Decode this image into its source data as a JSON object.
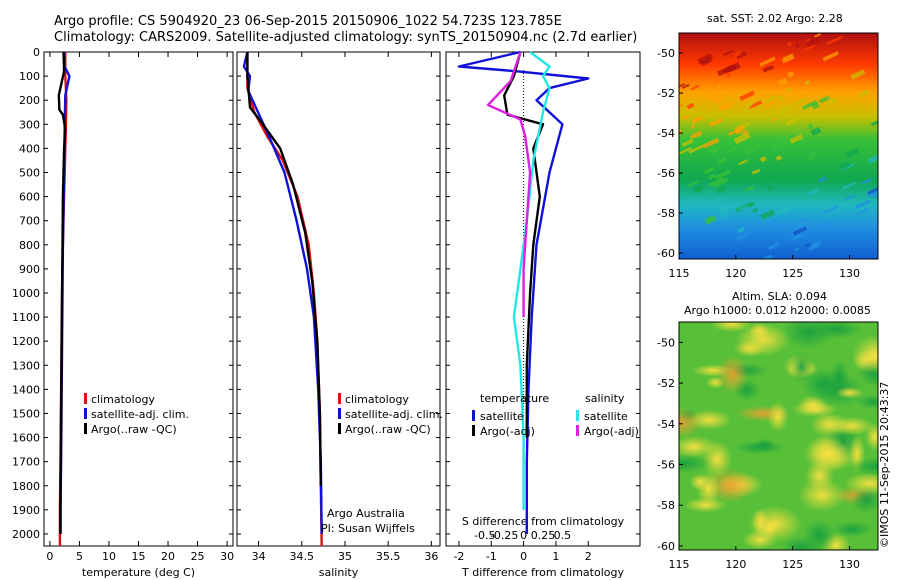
{
  "header": {
    "line1": "Argo profile: CS 5904920_23 06-Sep-2015 20150906_1022 54.723S 123.785E",
    "line2": "Climatology: CARS2009. Satellite-adjusted climatology: synTS_20150904.nc (2.7d earlier)"
  },
  "colors": {
    "climatology": "#e01010",
    "satellite": "#1010d8",
    "argo": "#000000",
    "salinity_satellite": "#20e8e8",
    "salinity_argo": "#e020e0"
  },
  "chart_data": [
    {
      "type": "line",
      "name": "temperature-panel",
      "xlabel": "temperature (deg C)",
      "ylabel": "",
      "xlim": [
        -1,
        31
      ],
      "ylim": [
        2050,
        0
      ],
      "xticks": [
        0,
        5,
        10,
        15,
        20,
        25,
        30
      ],
      "yticks": [
        0,
        100,
        200,
        300,
        400,
        500,
        600,
        700,
        800,
        900,
        1000,
        1100,
        1200,
        1300,
        1400,
        1500,
        1600,
        1700,
        1800,
        1900,
        2000
      ],
      "legend": [
        "climatology",
        "satellite-adj. clim.",
        "Argo(..raw -QC)"
      ],
      "series": [
        {
          "name": "climatology",
          "color": "#e01010",
          "x": [
            2.6,
            2.6,
            2.8,
            2.7,
            2.5,
            2.3,
            2.1,
            2.0,
            1.9,
            1.8,
            1.7,
            1.7
          ],
          "y": [
            0,
            100,
            200,
            300,
            500,
            700,
            900,
            1100,
            1400,
            1700,
            1900,
            2050
          ]
        },
        {
          "name": "satellite-adj. clim.",
          "color": "#1010d8",
          "x": [
            2.4,
            2.5,
            3.3,
            2.6,
            2.5,
            2.4,
            2.2,
            2.1,
            2.0,
            1.9,
            1.8,
            1.8
          ],
          "y": [
            0,
            60,
            100,
            180,
            300,
            500,
            800,
            1100,
            1400,
            1700,
            1900,
            2000
          ]
        },
        {
          "name": "Argo(..raw -QC)",
          "color": "#000000",
          "x": [
            2.3,
            2.4,
            1.5,
            1.6,
            2.2,
            2.6,
            2.4,
            2.2,
            2.1,
            2.0,
            1.9,
            1.8,
            1.8
          ],
          "y": [
            0,
            80,
            180,
            240,
            260,
            320,
            400,
            600,
            900,
            1200,
            1500,
            1800,
            2000
          ]
        }
      ]
    },
    {
      "type": "line",
      "name": "salinity-panel",
      "xlabel": "salinity",
      "xlim": [
        33.75,
        36.1
      ],
      "ylim": [
        2050,
        0
      ],
      "xticks": [
        34,
        34.5,
        35,
        35.5,
        36
      ],
      "xtick_labels": [
        "34",
        "34.5",
        "35",
        "35.5",
        "36"
      ],
      "legend": [
        "climatology",
        "satellite-adj. clim.",
        "Argo(..raw -QC)"
      ],
      "annotation": [
        "Argo Australia",
        "PI: Susan Wijffels"
      ],
      "series": [
        {
          "name": "climatology",
          "color": "#e01010",
          "x": [
            33.87,
            33.87,
            33.95,
            34.1,
            34.28,
            34.45,
            34.58,
            34.64,
            34.68,
            34.71,
            34.72,
            34.73
          ],
          "y": [
            0,
            150,
            250,
            350,
            450,
            600,
            800,
            1000,
            1200,
            1500,
            1800,
            2050
          ]
        },
        {
          "name": "satellite-adj. clim.",
          "color": "#1010d8",
          "x": [
            33.87,
            33.83,
            33.9,
            33.88,
            33.98,
            34.12,
            34.3,
            34.44,
            34.56,
            34.64,
            34.69,
            34.72,
            34.73
          ],
          "y": [
            0,
            60,
            100,
            160,
            240,
            350,
            500,
            700,
            900,
            1100,
            1400,
            1700,
            2000
          ]
        },
        {
          "name": "Argo(..raw -QC)",
          "color": "#000000",
          "x": [
            33.87,
            33.87,
            33.9,
            34.05,
            34.25,
            34.4,
            34.54,
            34.62,
            34.68,
            34.71,
            34.72
          ],
          "y": [
            0,
            100,
            230,
            300,
            400,
            550,
            750,
            950,
            1200,
            1500,
            1800
          ]
        }
      ]
    },
    {
      "type": "line",
      "name": "difference-panel",
      "xlabel": "T difference from climatology",
      "toplabel": "S difference from climatology",
      "xlim": [
        -2.4,
        3.6
      ],
      "ylim": [
        2050,
        0
      ],
      "xticks": [
        -2,
        -1,
        0,
        1,
        2
      ],
      "top_ticks": [
        -0.5,
        -0.25,
        0,
        0.25,
        0.5
      ],
      "top_tick_labels": [
        "-0.5",
        "-0.25",
        "0",
        "0.25",
        "0.5"
      ],
      "legend_left_title": "temperature",
      "legend_right_title": "salinity",
      "legend_left": [
        "satellite",
        "Argo(-adj)"
      ],
      "legend_right": [
        "satellite",
        "Argo(-adj)"
      ],
      "series": [
        {
          "name": "T satellite",
          "color": "#1010d8",
          "x": [
            -0.1,
            -2.0,
            -0.2,
            2.0,
            0.8,
            0.4,
            1.2,
            0.8,
            0.4,
            0.25,
            0.15,
            0.1,
            0.1
          ],
          "y": [
            0,
            60,
            80,
            110,
            150,
            200,
            300,
            500,
            800,
            1100,
            1400,
            1700,
            2000
          ]
        },
        {
          "name": "T Argo(-adj)",
          "color": "#000000",
          "x": [
            -0.1,
            -0.3,
            -0.6,
            -0.5,
            0.6,
            0.3,
            0.5,
            0.3,
            0.2,
            0.1,
            0.1
          ],
          "y": [
            0,
            100,
            180,
            260,
            300,
            400,
            600,
            800,
            1000,
            1300,
            1600
          ]
        },
        {
          "name": "S satellite",
          "color": "#20e8e8",
          "x": [
            0.2,
            0.8,
            0.6,
            0.8,
            0.6,
            0.3,
            0.1,
            -0.1,
            -0.3,
            -0.1,
            0.0,
            0.0
          ],
          "y": [
            0,
            60,
            100,
            150,
            250,
            450,
            700,
            900,
            1100,
            1300,
            1600,
            1900
          ]
        },
        {
          "name": "S Argo(-adj)",
          "color": "#e020e0",
          "x": [
            -0.1,
            -0.4,
            -1.1,
            -0.1,
            0.05,
            0.2,
            0.1,
            0.0,
            0.0
          ],
          "y": [
            0,
            120,
            220,
            280,
            350,
            500,
            700,
            900,
            1100
          ]
        }
      ]
    },
    {
      "type": "heatmap",
      "name": "sst-map",
      "title": "sat. SST: 2.02 Argo: 2.28",
      "xticks": [
        115,
        120,
        125,
        130
      ],
      "yticks": [
        -50,
        -52,
        -54,
        -56,
        -58,
        -60
      ],
      "ytick_labels": [
        "-50",
        "-52",
        "-54",
        "-56",
        "-58",
        "-60"
      ],
      "xlim": [
        115,
        132.5
      ],
      "ylim": [
        -60.3,
        -49.0
      ]
    },
    {
      "type": "heatmap",
      "name": "sla-map",
      "title_line1": "Altim. SLA: 0.094",
      "title_line2": "Argo h1000: 0.012 h2000: 0.0085",
      "xticks": [
        115,
        120,
        125,
        130
      ],
      "yticks": [
        -50,
        -52,
        -54,
        -56,
        -58,
        -60
      ],
      "ytick_labels": [
        "-50",
        "-52",
        "-54",
        "-56",
        "-58",
        "-60"
      ],
      "xlim": [
        115,
        132.5
      ],
      "ylim": [
        -60.2,
        -49.0
      ]
    }
  ],
  "credit": "©IMOS 11-Sep-2015 20:43:37"
}
